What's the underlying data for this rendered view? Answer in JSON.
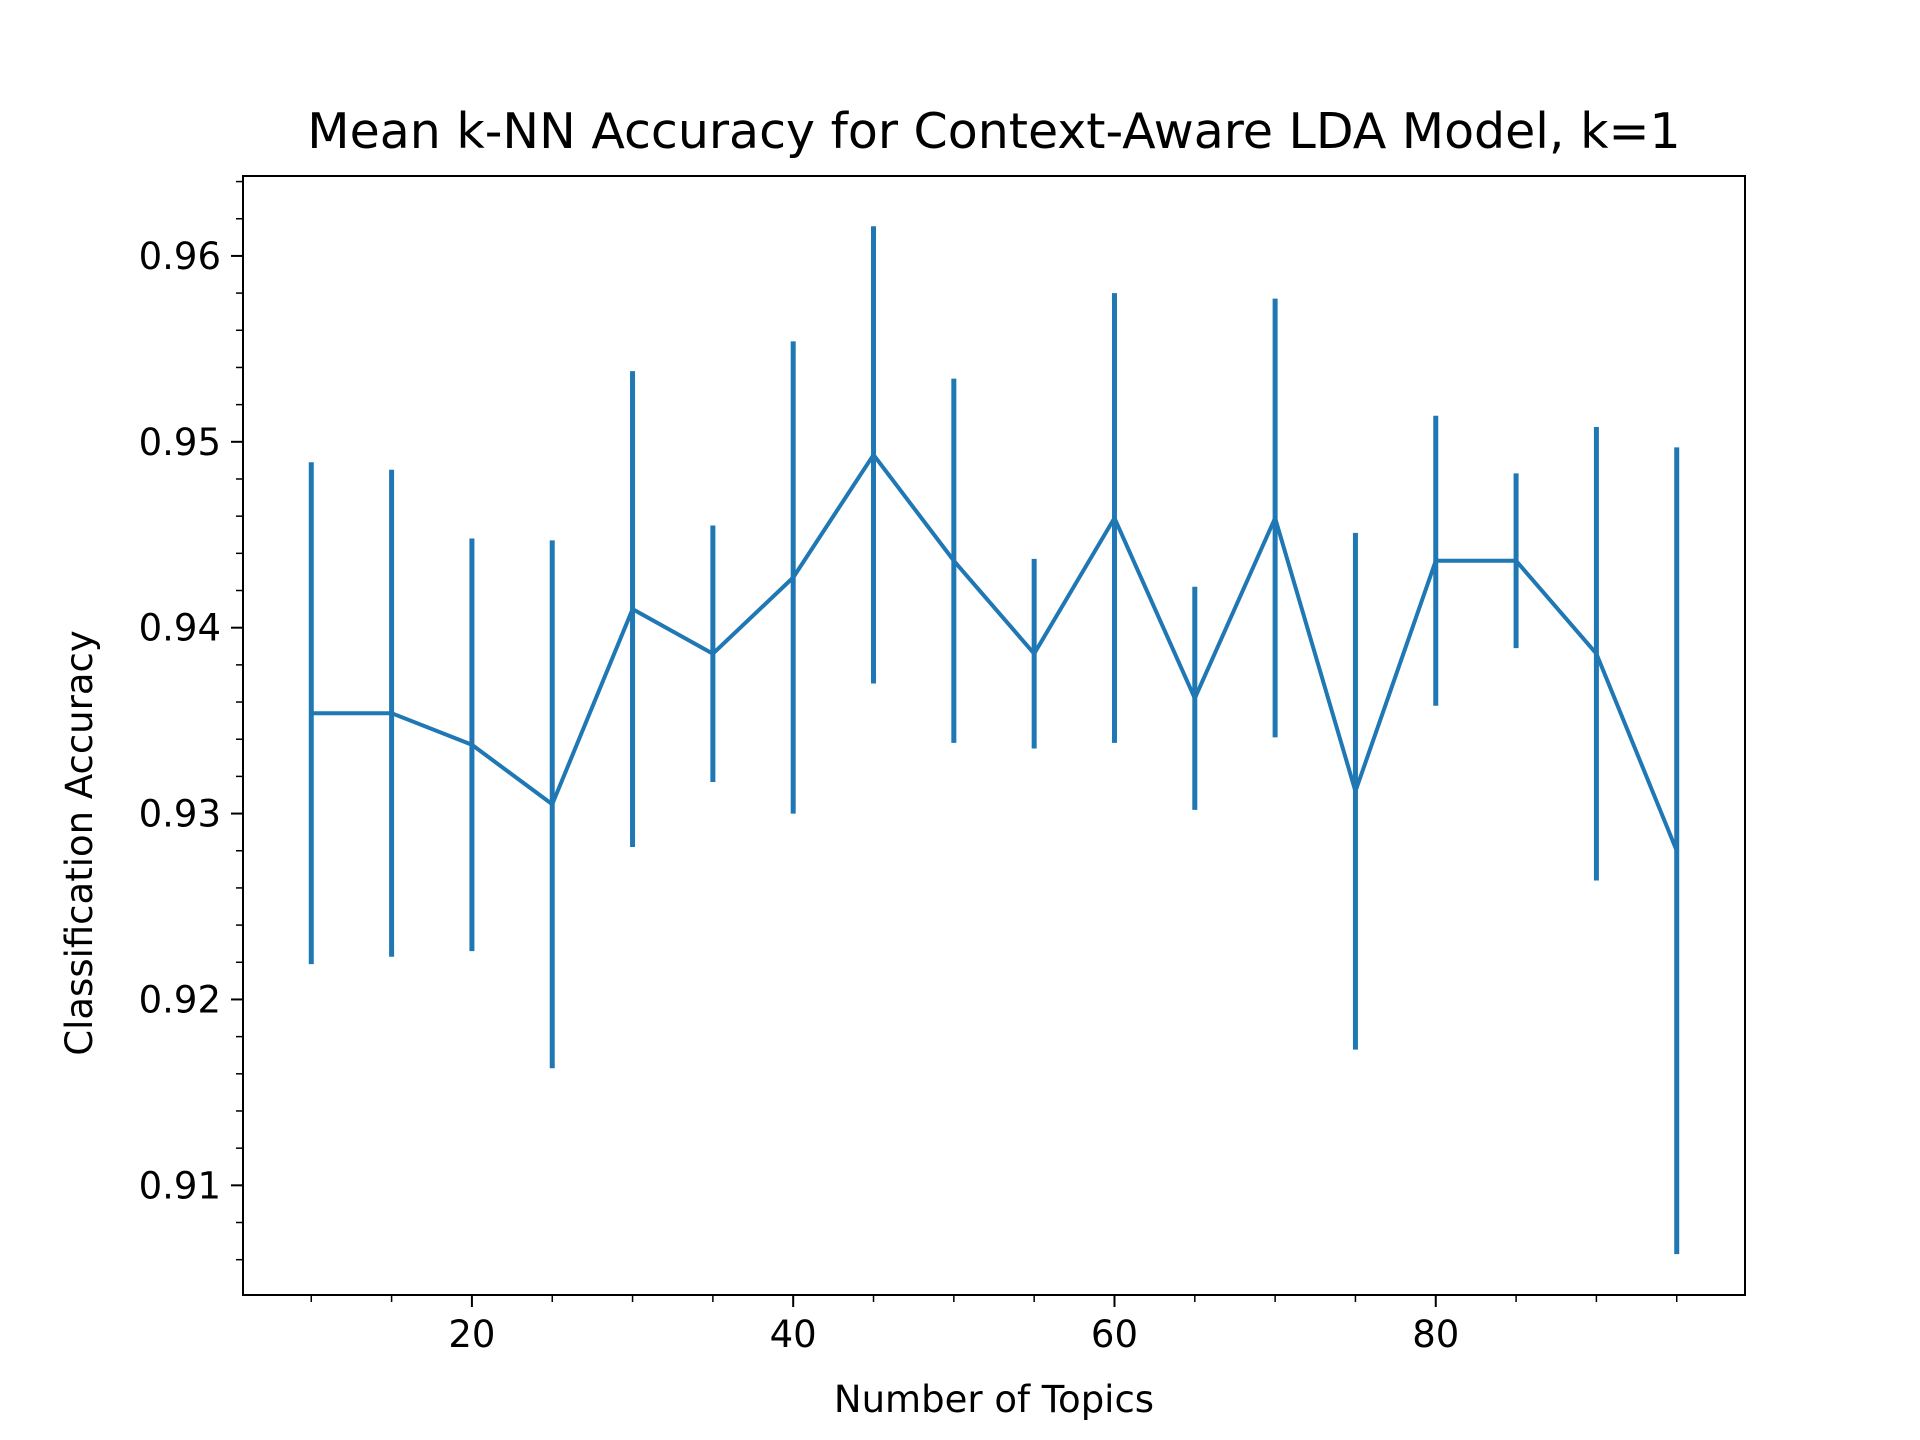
{
  "chart_data": {
    "type": "line",
    "title": "Mean k-NN Accuracy for Context-Aware LDA Model, k=1",
    "xlabel": "Number of Topics",
    "ylabel": "Classification Accuracy",
    "xlim": [
      5.75,
      99.25
    ],
    "ylim": [
      0.9041,
      0.9643
    ],
    "x_ticks": [
      20,
      40,
      60,
      80
    ],
    "x_tick_labels": [
      "20",
      "40",
      "60",
      "80"
    ],
    "x_minor_ticks": [
      10,
      15,
      25,
      30,
      35,
      45,
      50,
      55,
      65,
      70,
      75,
      85,
      90,
      95
    ],
    "y_ticks": [
      0.91,
      0.92,
      0.93,
      0.94,
      0.95,
      0.96
    ],
    "y_tick_labels": [
      "0.91",
      "0.92",
      "0.93",
      "0.94",
      "0.95",
      "0.96"
    ],
    "grid": false,
    "series": [
      {
        "color": "#1f77b4",
        "x": [
          10,
          15,
          20,
          25,
          30,
          35,
          40,
          45,
          50,
          55,
          60,
          65,
          70,
          75,
          80,
          85,
          90,
          95
        ],
        "y": [
          0.9354,
          0.9354,
          0.9337,
          0.9305,
          0.941,
          0.9386,
          0.9427,
          0.9493,
          0.9436,
          0.9386,
          0.9459,
          0.9362,
          0.9459,
          0.9312,
          0.9436,
          0.9436,
          0.9386,
          0.928
        ],
        "yerr": [
          0.0135,
          0.0131,
          0.0111,
          0.0142,
          0.0128,
          0.0069,
          0.0127,
          0.0123,
          0.0098,
          0.0051,
          0.0121,
          0.006,
          0.0118,
          0.0139,
          0.0078,
          0.0047,
          0.0122,
          0.0217
        ]
      }
    ]
  }
}
